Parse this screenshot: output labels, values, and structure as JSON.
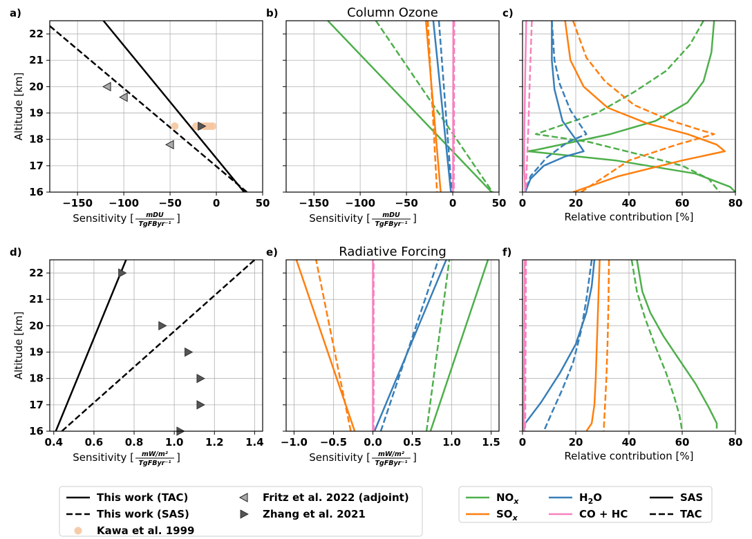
{
  "figure": {
    "row_titles": [
      "Column Ozone",
      "Radiative Forcing"
    ]
  },
  "chart_data": [
    {
      "id": "a",
      "type": "line",
      "panel_label": "a)",
      "xlabel": "Sensitivity",
      "xunit_num": "mDU",
      "xunit_den": "TgFByr⁻¹",
      "ylabel": "Altitude [km]",
      "xlim": [
        -180,
        50
      ],
      "ylim": [
        16,
        22.5
      ],
      "xticks": [
        -150,
        -100,
        -50,
        0,
        50
      ],
      "xtick_labels": [
        "−150",
        "−100",
        "−50",
        "0",
        "50"
      ],
      "yticks": [
        16,
        17,
        18,
        19,
        20,
        21,
        22
      ],
      "series": [
        {
          "name": "This work (TAC)",
          "color": "#000000",
          "dash": "solid",
          "x": [
            -122,
            30
          ],
          "y": [
            22.5,
            16
          ]
        },
        {
          "name": "This work (SAS)",
          "color": "#000000",
          "dash": "dashed",
          "x": [
            -180,
            33
          ],
          "y": [
            22.3,
            16
          ]
        }
      ],
      "markers": [
        {
          "name": "Kawa et al. 1999",
          "shape": "circle",
          "color": "#f4c7a1",
          "x": [
            -45,
            -22,
            -17,
            -13,
            -10,
            -7,
            -4
          ],
          "y": [
            18.5,
            18.5,
            18.5,
            18.5,
            18.5,
            18.5,
            18.5
          ]
        },
        {
          "name": "Fritz et al. 2022 (adjoint)",
          "shape": "tri-left",
          "color": "#aaaaaa",
          "x": [
            -118,
            -100,
            -50
          ],
          "y": [
            20.0,
            19.6,
            17.8
          ]
        },
        {
          "name": "Zhang et al. 2021",
          "shape": "tri-right",
          "color": "#555555",
          "x": [
            -16
          ],
          "y": [
            18.5
          ]
        }
      ]
    },
    {
      "id": "b",
      "type": "line",
      "panel_label": "b)",
      "xlabel": "Sensitivity",
      "xunit_num": "mDU",
      "xunit_den": "TgFByr⁻¹",
      "ylabel": "",
      "xlim": [
        -180,
        50
      ],
      "ylim": [
        16,
        22.5
      ],
      "xticks": [
        -150,
        -100,
        -50,
        0,
        50
      ],
      "xtick_labels": [
        "−150",
        "−100",
        "−50",
        "0",
        "50"
      ],
      "yticks": [
        16,
        17,
        18,
        19,
        20,
        21,
        22
      ],
      "series": [
        {
          "name": "NOx (SAS)",
          "color": "#4daf4a",
          "dash": "solid",
          "x": [
            -135,
            42
          ],
          "y": [
            22.5,
            16
          ]
        },
        {
          "name": "NOx (TAC)",
          "color": "#4daf4a",
          "dash": "dashed",
          "x": [
            -83,
            43
          ],
          "y": [
            22.5,
            16
          ]
        },
        {
          "name": "SOx (SAS)",
          "color": "#ff7f0e",
          "dash": "solid",
          "x": [
            -29,
            -13
          ],
          "y": [
            22.5,
            16
          ]
        },
        {
          "name": "SOx (TAC)",
          "color": "#ff7f0e",
          "dash": "dashed",
          "x": [
            -27,
            -17
          ],
          "y": [
            22.5,
            16
          ]
        },
        {
          "name": "H2O (SAS)",
          "color": "#377eb8",
          "dash": "solid",
          "x": [
            -21,
            -2
          ],
          "y": [
            22.5,
            16
          ]
        },
        {
          "name": "H2O (TAC)",
          "color": "#377eb8",
          "dash": "dashed",
          "x": [
            -15,
            -1
          ],
          "y": [
            22.5,
            16
          ]
        },
        {
          "name": "CO + HC (SAS)",
          "color": "#f781bf",
          "dash": "solid",
          "x": [
            0.6,
            0.3
          ],
          "y": [
            22.5,
            16
          ]
        },
        {
          "name": "CO + HC (TAC)",
          "color": "#f781bf",
          "dash": "dashed",
          "x": [
            1.6,
            1.2
          ],
          "y": [
            22.5,
            16
          ]
        }
      ]
    },
    {
      "id": "c",
      "type": "line",
      "panel_label": "c)",
      "xlabel": "Relative contribution [%]",
      "ylabel": "",
      "xlim": [
        0,
        80
      ],
      "ylim": [
        16,
        22.5
      ],
      "xticks": [
        0,
        20,
        40,
        60,
        80
      ],
      "xtick_labels": [
        "0",
        "20",
        "40",
        "60",
        "80"
      ],
      "yticks": [
        16,
        17,
        18,
        19,
        20,
        21,
        22
      ],
      "series": [
        {
          "name": "NOx (SAS)",
          "color": "#4daf4a",
          "dash": "solid",
          "x": [
            72,
            71,
            68,
            62,
            50,
            33,
            5,
            2,
            35,
            65,
            78,
            80
          ],
          "y": [
            22.5,
            21.3,
            20.2,
            19.4,
            18.7,
            18.2,
            17.6,
            17.55,
            17.2,
            16.7,
            16.2,
            16
          ]
        },
        {
          "name": "NOx (TAC)",
          "color": "#4daf4a",
          "dash": "dashed",
          "x": [
            68,
            63,
            54,
            42,
            28,
            5,
            25,
            45,
            60,
            70,
            74
          ],
          "y": [
            22.5,
            21.6,
            20.6,
            19.8,
            19.0,
            18.2,
            17.9,
            17.4,
            17.0,
            16.5,
            16
          ]
        },
        {
          "name": "SOx (SAS)",
          "color": "#ff7f0e",
          "dash": "solid",
          "x": [
            16,
            18,
            23,
            32,
            47,
            62,
            73,
            76,
            60,
            36,
            19
          ],
          "y": [
            22.5,
            21.0,
            20.0,
            19.2,
            18.6,
            18.2,
            17.8,
            17.55,
            17.2,
            16.6,
            16
          ]
        },
        {
          "name": "SOx (TAC)",
          "color": "#ff7f0e",
          "dash": "dashed",
          "x": [
            19,
            24,
            31,
            42,
            56,
            67,
            72,
            58,
            40,
            22
          ],
          "y": [
            22.5,
            21.1,
            20.2,
            19.3,
            18.7,
            18.35,
            18.2,
            17.8,
            17.2,
            16
          ]
        },
        {
          "name": "H2O (SAS)",
          "color": "#377eb8",
          "dash": "solid",
          "x": [
            11,
            11,
            12,
            15,
            20,
            23,
            16,
            8,
            3,
            1
          ],
          "y": [
            22.5,
            21.0,
            19.9,
            18.7,
            18.0,
            17.55,
            17.35,
            17.0,
            16.5,
            16
          ]
        },
        {
          "name": "H2O (TAC)",
          "color": "#377eb8",
          "dash": "dashed",
          "x": [
            11,
            12,
            14,
            18,
            22,
            24,
            17,
            9,
            3,
            1
          ],
          "y": [
            22.5,
            21.0,
            20.1,
            19.1,
            18.5,
            18.2,
            17.9,
            17.3,
            16.6,
            16
          ]
        },
        {
          "name": "CO + HC (SAS)",
          "color": "#f781bf",
          "dash": "solid",
          "x": [
            1.4,
            1.0,
            0.7,
            0.6,
            1.0
          ],
          "y": [
            22.5,
            20.5,
            18.5,
            17.0,
            16
          ]
        },
        {
          "name": "CO + HC (TAC)",
          "color": "#f781bf",
          "dash": "dashed",
          "x": [
            3.5,
            2.8,
            2.2,
            1.6,
            1.2
          ],
          "y": [
            22.5,
            20.5,
            18.5,
            17.0,
            16
          ]
        }
      ]
    },
    {
      "id": "d",
      "type": "line",
      "panel_label": "d)",
      "xlabel": "Sensitivity",
      "xunit_num": "mW/m²",
      "xunit_den": "TgFByr⁻¹",
      "ylabel": "Altitude [km]",
      "xlim": [
        0.38,
        1.44
      ],
      "ylim": [
        16,
        22.5
      ],
      "xticks": [
        0.4,
        0.6,
        0.8,
        1.0,
        1.2,
        1.4
      ],
      "xtick_labels": [
        "0.4",
        "0.6",
        "0.8",
        "1.0",
        "1.2",
        "1.4"
      ],
      "yticks": [
        16,
        17,
        18,
        19,
        20,
        21,
        22
      ],
      "series": [
        {
          "name": "This work (TAC)",
          "color": "#000000",
          "dash": "solid",
          "x": [
            0.41,
            0.76
          ],
          "y": [
            16,
            22.5
          ]
        },
        {
          "name": "This work (SAS)",
          "color": "#000000",
          "dash": "dashed",
          "x": [
            0.44,
            1.4
          ],
          "y": [
            16,
            22.5
          ]
        }
      ],
      "markers": [
        {
          "name": "Zhang et al. 2021",
          "shape": "tri-right",
          "color": "#555555",
          "x": [
            0.74,
            0.94,
            1.07,
            1.13,
            1.13,
            1.03
          ],
          "y": [
            22,
            20,
            19,
            18,
            17,
            16
          ]
        }
      ]
    },
    {
      "id": "e",
      "type": "line",
      "panel_label": "e)",
      "xlabel": "Sensitivity",
      "xunit_num": "mW/m²",
      "xunit_den": "TgFByr⁻¹",
      "ylabel": "",
      "xlim": [
        -1.1,
        1.6
      ],
      "ylim": [
        16,
        22.5
      ],
      "xticks": [
        -1.0,
        -0.5,
        0.0,
        0.5,
        1.0,
        1.5
      ],
      "xtick_labels": [
        "−1.0",
        "−0.5",
        "0.0",
        "0.5",
        "1.0",
        "1.5"
      ],
      "yticks": [
        16,
        17,
        18,
        19,
        20,
        21,
        22
      ],
      "series": [
        {
          "name": "NOx (SAS)",
          "color": "#4daf4a",
          "dash": "solid",
          "x": [
            0.73,
            1.46
          ],
          "y": [
            16,
            22.5
          ]
        },
        {
          "name": "NOx (TAC)",
          "color": "#4daf4a",
          "dash": "dashed",
          "x": [
            0.68,
            0.97
          ],
          "y": [
            16,
            22.5
          ]
        },
        {
          "name": "SOx (SAS)",
          "color": "#ff7f0e",
          "dash": "solid",
          "x": [
            -0.23,
            -0.97
          ],
          "y": [
            16,
            22.5
          ]
        },
        {
          "name": "SOx (TAC)",
          "color": "#ff7f0e",
          "dash": "dashed",
          "x": [
            -0.28,
            -0.72
          ],
          "y": [
            16,
            22.5
          ]
        },
        {
          "name": "H2O (SAS)",
          "color": "#377eb8",
          "dash": "solid",
          "x": [
            0.02,
            0.93
          ],
          "y": [
            16,
            22.5
          ]
        },
        {
          "name": "H2O (TAC)",
          "color": "#377eb8",
          "dash": "dashed",
          "x": [
            0.1,
            0.83
          ],
          "y": [
            16,
            22.5
          ]
        },
        {
          "name": "CO + HC (SAS)",
          "color": "#f781bf",
          "dash": "solid",
          "x": [
            0.0,
            0.0
          ],
          "y": [
            16,
            22.5
          ]
        },
        {
          "name": "CO + HC (TAC)",
          "color": "#f781bf",
          "dash": "dashed",
          "x": [
            0.01,
            0.01
          ],
          "y": [
            16,
            22.5
          ]
        }
      ]
    },
    {
      "id": "f",
      "type": "line",
      "panel_label": "f)",
      "xlabel": "Relative contribution [%]",
      "ylabel": "",
      "xlim": [
        0,
        80
      ],
      "ylim": [
        16,
        22.5
      ],
      "xticks": [
        0,
        20,
        40,
        60,
        80
      ],
      "xtick_labels": [
        "0",
        "20",
        "40",
        "60",
        "80"
      ],
      "yticks": [
        16,
        17,
        18,
        19,
        20,
        21,
        22
      ],
      "series": [
        {
          "name": "NOx (SAS)",
          "color": "#4daf4a",
          "dash": "solid",
          "x": [
            43,
            45,
            48,
            53,
            59,
            65,
            70,
            73,
            73
          ],
          "y": [
            22.5,
            21.3,
            20.5,
            19.6,
            18.7,
            17.8,
            16.9,
            16.3,
            16.1
          ]
        },
        {
          "name": "NOx (TAC)",
          "color": "#4daf4a",
          "dash": "dashed",
          "x": [
            41,
            43,
            46,
            50,
            54,
            57,
            59,
            60
          ],
          "y": [
            22.5,
            21.3,
            20.3,
            19.2,
            18.2,
            17.3,
            16.6,
            16
          ]
        },
        {
          "name": "SOx (SAS)",
          "color": "#ff7f0e",
          "dash": "solid",
          "x": [
            29,
            28.5,
            28,
            27.5,
            27,
            26,
            24
          ],
          "y": [
            22.5,
            21.0,
            19.5,
            18.0,
            17.0,
            16.3,
            16
          ]
        },
        {
          "name": "SOx (TAC)",
          "color": "#ff7f0e",
          "dash": "dashed",
          "x": [
            32.5,
            32.3,
            32,
            31.5,
            31,
            30.5
          ],
          "y": [
            22.5,
            21.0,
            19.5,
            18.0,
            17.0,
            16
          ]
        },
        {
          "name": "H2O (SAS)",
          "color": "#377eb8",
          "dash": "solid",
          "x": [
            27,
            26,
            24,
            20,
            14,
            7,
            1,
            0.5
          ],
          "y": [
            22.5,
            21.5,
            20.5,
            19.3,
            18.2,
            17.1,
            16.3,
            16
          ]
        },
        {
          "name": "H2O (TAC)",
          "color": "#377eb8",
          "dash": "dashed",
          "x": [
            26,
            24,
            22,
            19,
            15,
            11,
            8
          ],
          "y": [
            22.5,
            21.0,
            19.8,
            18.6,
            17.6,
            16.7,
            16
          ]
        },
        {
          "name": "CO + HC (SAS)",
          "color": "#f781bf",
          "dash": "solid",
          "x": [
            0.8,
            0.7,
            0.6,
            0.5
          ],
          "y": [
            22.5,
            20,
            18,
            16
          ]
        },
        {
          "name": "CO + HC (TAC)",
          "color": "#f781bf",
          "dash": "dashed",
          "x": [
            1.3,
            1.2,
            1.1,
            1.0
          ],
          "y": [
            22.5,
            20,
            18,
            16
          ]
        }
      ]
    }
  ],
  "legend_left": {
    "entries": [
      {
        "label": "This work (TAC)",
        "kind": "line",
        "dash": "solid",
        "color": "#000000"
      },
      {
        "label": "This work (SAS)",
        "kind": "line",
        "dash": "dashed",
        "color": "#000000"
      },
      {
        "label": "Kawa et al. 1999",
        "kind": "circle",
        "color": "#f4c7a1"
      },
      {
        "label": "Fritz et al. 2022 (adjoint)",
        "kind": "tri-left",
        "color": "#aaaaaa"
      },
      {
        "label": "Zhang et al. 2021",
        "kind": "tri-right",
        "color": "#555555"
      }
    ]
  },
  "legend_right": {
    "entries": [
      {
        "label": "NO",
        "sub": "x",
        "kind": "line",
        "dash": "solid",
        "color": "#4daf4a"
      },
      {
        "label": "SO",
        "sub": "x",
        "kind": "line",
        "dash": "solid",
        "color": "#ff7f0e"
      },
      {
        "label": "H",
        "sub": "2",
        "tail": "O",
        "kind": "line",
        "dash": "solid",
        "color": "#377eb8"
      },
      {
        "label": "CO + HC",
        "kind": "line",
        "dash": "solid",
        "color": "#f781bf"
      },
      {
        "label": "SAS",
        "kind": "line",
        "dash": "solid",
        "color": "#000000"
      },
      {
        "label": "TAC",
        "kind": "line",
        "dash": "dashed",
        "color": "#000000"
      }
    ]
  }
}
